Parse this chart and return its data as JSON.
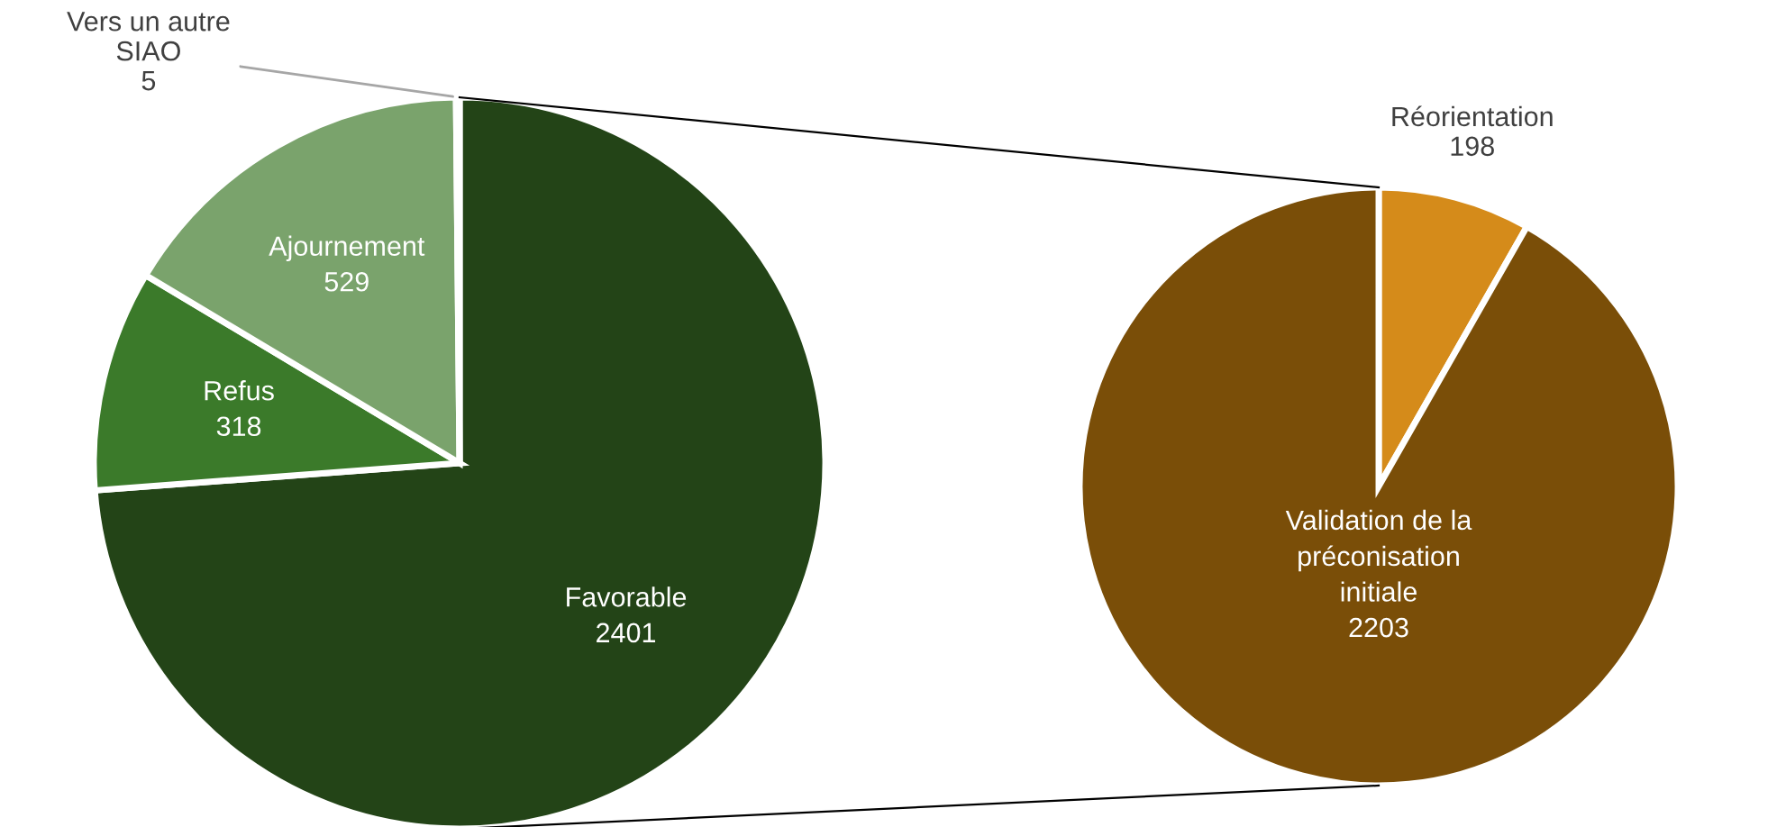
{
  "chart_data": [
    {
      "type": "pie",
      "categories": [
        "Favorable",
        "Refus",
        "Ajournement",
        "Vers un autre SIAO"
      ],
      "values": [
        2401,
        318,
        529,
        5
      ],
      "colors": [
        "#234417",
        "#3b7a2a",
        "#7aa36c",
        "#a6a6a6"
      ],
      "data_labels": true,
      "legend": false
    },
    {
      "type": "pie",
      "categories": [
        "Réorientation",
        "Validation de la préconisation initiale"
      ],
      "values": [
        198,
        2203
      ],
      "colors": [
        "#d58b1a",
        "#7a4e08"
      ],
      "data_labels": true,
      "legend": false
    }
  ]
}
